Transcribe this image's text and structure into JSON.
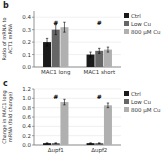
{
  "chart_data": [
    {
      "type": "bar",
      "title": "b",
      "categories": [
        "MAC1 long",
        "MAC1 short"
      ],
      "series": [
        {
          "name": "Ctrl",
          "color": "#1a1a1a",
          "values": [
            0.2,
            0.1
          ],
          "errors": [
            0.03,
            0.02
          ]
        },
        {
          "name": "Low Cu",
          "color": "#666666",
          "values": [
            0.3,
            0.13
          ],
          "errors": [
            0.04,
            0.02
          ]
        },
        {
          "name": "800 μM Cu",
          "color": "#b0b0b0",
          "values": [
            0.32,
            0.14
          ],
          "errors": [
            0.04,
            0.02
          ]
        }
      ],
      "y_label": "Ratio of mRNA to\nACT1 mRNA",
      "ylim": [
        0,
        0.45
      ],
      "yticks": [
        {
          "value": 0.0,
          "label": "0.0"
        },
        0.1,
        0.2,
        0.3,
        0.4
      ],
      "legend": "right",
      "annotations": [
        {
          "text": "#",
          "category": "MAC1 long",
          "y": 0.335
        },
        {
          "text": "#",
          "category": "MAC1 short",
          "y": 0.335
        }
      ]
    },
    {
      "type": "bar",
      "title": "c",
      "categories": [
        "Δupf1",
        "Δupf2"
      ],
      "series": [
        {
          "name": "Ctrl",
          "color": "#1a1a1a",
          "values": [
            0.04,
            0.04
          ],
          "errors": [
            0.005,
            0.005
          ]
        },
        {
          "name": "Low Cu",
          "color": "#666666",
          "values": [
            0.04,
            0.04
          ],
          "errors": [
            0.005,
            0.005
          ]
        },
        {
          "name": "800 μM Cu",
          "color": "#b0b0b0",
          "values": [
            0.92,
            0.85
          ],
          "errors": [
            0.06,
            0.05
          ]
        }
      ],
      "y_label": "Change in MAC1 long\nmRNA (fold change)",
      "ylim": [
        0,
        1.2
      ],
      "yticks": [
        {
          "value": 0.0,
          "label": "0.0"
        },
        0.2,
        0.4,
        0.6,
        0.8,
        {
          "value": 1.0,
          "label": "1.0"
        },
        1.2
      ],
      "legend": "right",
      "annotations": [
        {
          "text": "#",
          "category": "Δupf1",
          "y": 0.98
        },
        {
          "text": "#",
          "category": "Δupf2",
          "y": 0.98
        }
      ]
    }
  ]
}
